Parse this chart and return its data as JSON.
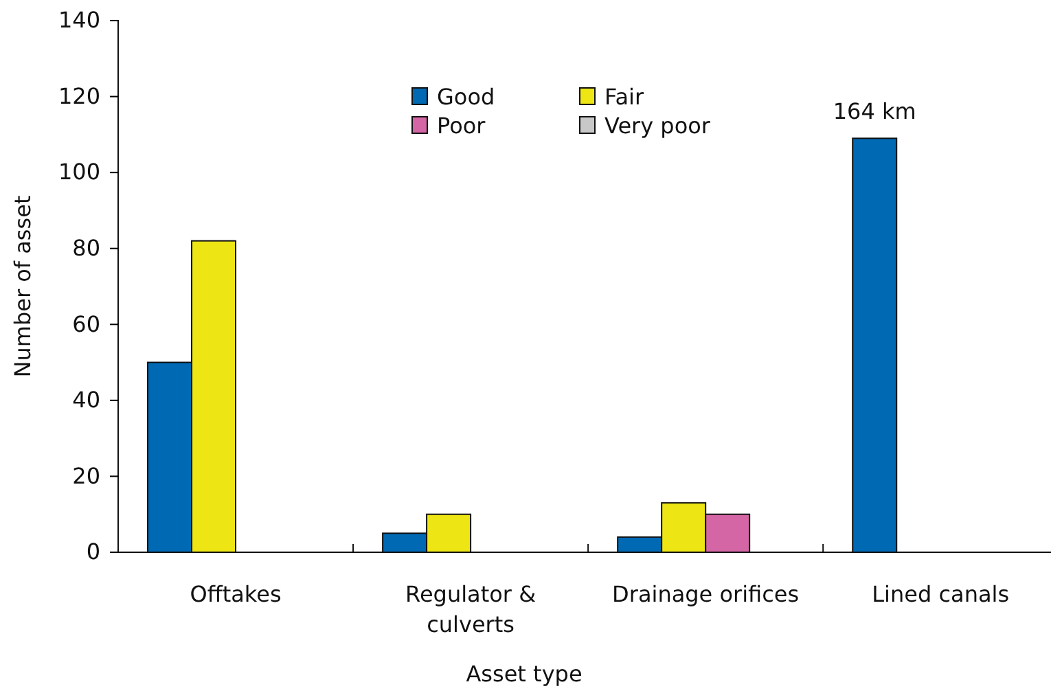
{
  "chart_data": {
    "type": "bar",
    "xlabel": "Asset type",
    "ylabel": "Number of asset",
    "categories": [
      "Offtakes",
      "Regulator & culverts",
      "Drainage orifices",
      "Lined canals"
    ],
    "series": [
      {
        "name": "Good",
        "color": "#0069b4",
        "values": [
          50,
          5,
          4,
          109
        ]
      },
      {
        "name": "Fair",
        "color": "#ede614",
        "values": [
          82,
          10,
          13,
          0
        ]
      },
      {
        "name": "Poor",
        "color": "#d466a6",
        "values": [
          0,
          0,
          10,
          0
        ]
      },
      {
        "name": "Very poor",
        "color": "#c8c8c8",
        "values": [
          0,
          0,
          0,
          0
        ]
      }
    ],
    "ylim": [
      0,
      140
    ],
    "yticks": [
      0,
      20,
      40,
      60,
      80,
      100,
      120,
      140
    ],
    "annotations": [
      "164 km"
    ],
    "legend": "top",
    "grid": false
  }
}
